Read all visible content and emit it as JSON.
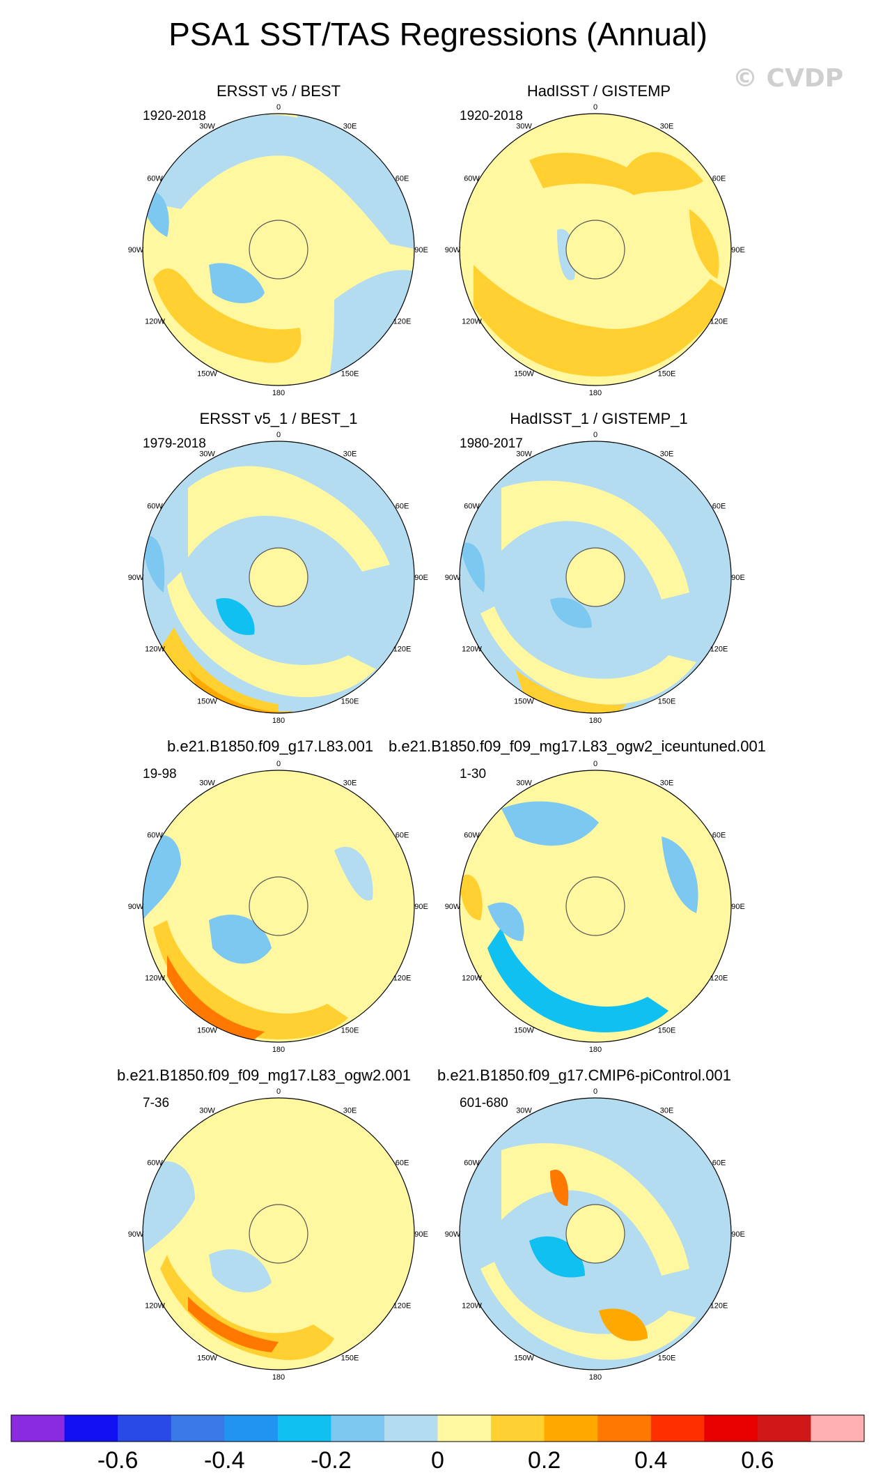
{
  "title": "PSA1 SST/TAS Regressions (Annual)",
  "credit": "© CVDP",
  "chart_data": {
    "type": "heatmap",
    "projection": "south-polar-stereographic",
    "longitude_labels": [
      "0",
      "30E",
      "60E",
      "90E",
      "120E",
      "150E",
      "180",
      "150W",
      "120W",
      "90W",
      "60W",
      "30W"
    ],
    "panels": [
      {
        "title": "ERSST v5 / BEST",
        "years": "1920-2018"
      },
      {
        "title": "HadISST / GISTEMP",
        "years": "1920-2018"
      },
      {
        "title": "ERSST v5_1 / BEST_1",
        "years": "1979-2018"
      },
      {
        "title": "HadISST_1 / GISTEMP_1",
        "years": "1980-2017"
      },
      {
        "title": "b.e21.B1850.f09_g17.L83.001",
        "years": "19-98"
      },
      {
        "title": "b.e21.B1850.f09_f09_mg17.L83_ogw2_iceuntuned.001",
        "years": "1-30"
      },
      {
        "title": "b.e21.B1850.f09_f09_mg17.L83_ogw2.001",
        "years": "7-36"
      },
      {
        "title": "b.e21.B1850.f09_g17.CMIP6-piControl.001",
        "years": "601-680"
      }
    ],
    "colorbar": {
      "levels": [
        -0.7,
        -0.6,
        -0.5,
        -0.4,
        -0.3,
        -0.2,
        -0.1,
        0,
        0.1,
        0.2,
        0.3,
        0.4,
        0.5,
        0.6,
        0.7
      ],
      "labels": [
        "-0.6",
        "-0.4",
        "-0.2",
        "0",
        "0.2",
        "0.4",
        "0.6"
      ],
      "colors": [
        "#8a2be2",
        "#1010f0",
        "#2a4ae8",
        "#3a78e8",
        "#2094f0",
        "#10c0f0",
        "#7cc8f0",
        "#b4dcf0",
        "#fff8a0",
        "#ffd030",
        "#ffa800",
        "#ff7800",
        "#ff3000",
        "#e80000",
        "#d01818",
        "#ffb0b0"
      ]
    }
  }
}
